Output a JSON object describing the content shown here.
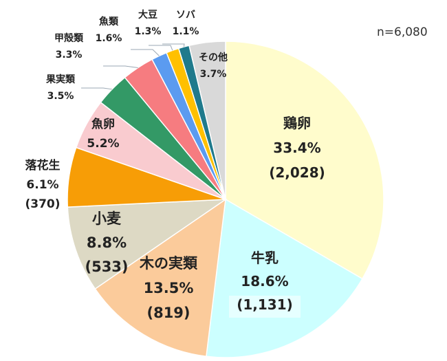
{
  "chart_data": {
    "type": "pie",
    "note": "n=6,080",
    "slices": [
      {
        "name": "鶏卵",
        "value": 33.4,
        "percent_label": "33.4%",
        "count_label": "(2,028)",
        "color": "#FFFCCC"
      },
      {
        "name": "牛乳",
        "value": 18.6,
        "percent_label": "18.6%",
        "count_label": "(1,131)",
        "color": "#CCFFFF"
      },
      {
        "name": "木の実類",
        "value": 13.5,
        "percent_label": "13.5%",
        "count_label": "(819)",
        "color": "#FBCB9B"
      },
      {
        "name": "小麦",
        "value": 8.8,
        "percent_label": "8.8%",
        "count_label": "(533)",
        "color": "#DDD9C4"
      },
      {
        "name": "落花生",
        "value": 6.1,
        "percent_label": "6.1%",
        "count_label": "(370)",
        "color": "#F79D06"
      },
      {
        "name": "魚卵",
        "value": 5.2,
        "percent_label": "5.2%",
        "count_label": "",
        "color": "#F9CBCF"
      },
      {
        "name": "果実類",
        "value": 3.5,
        "percent_label": "3.5%",
        "count_label": "",
        "color": "#339966"
      },
      {
        "name": "甲殻類",
        "value": 3.3,
        "percent_label": "3.3%",
        "count_label": "",
        "color": "#F67C80"
      },
      {
        "name": "魚類",
        "value": 1.6,
        "percent_label": "1.6%",
        "count_label": "",
        "color": "#5B9BF0"
      },
      {
        "name": "大豆",
        "value": 1.3,
        "percent_label": "1.3%",
        "count_label": "",
        "color": "#FFC000"
      },
      {
        "name": "ソバ",
        "value": 1.1,
        "percent_label": "1.1%",
        "count_label": "",
        "color": "#1F7A8C"
      },
      {
        "name": "その他",
        "value": 3.7,
        "percent_label": "3.7%",
        "count_label": "",
        "color": "#D9D9D9"
      }
    ]
  }
}
